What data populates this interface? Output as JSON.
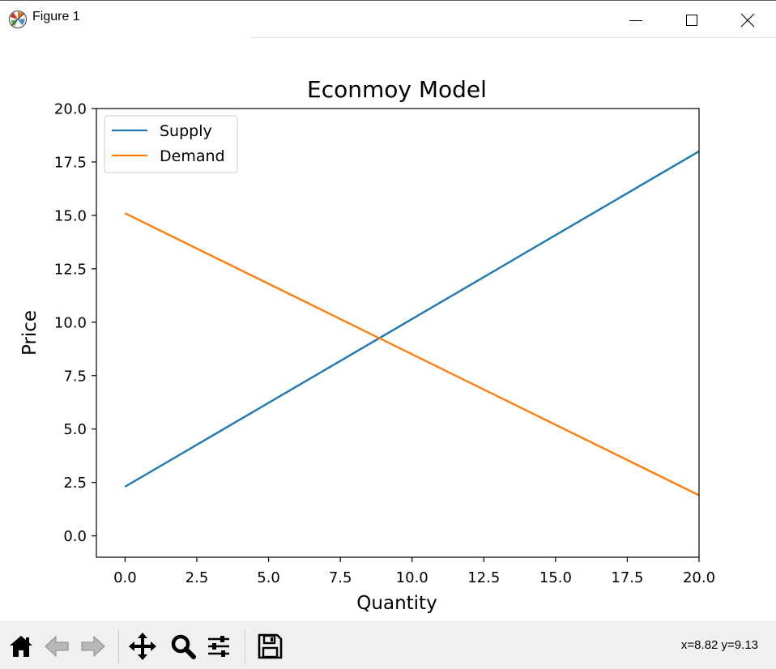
{
  "window": {
    "title": "Figure 1",
    "controls": [
      "minimize",
      "maximize",
      "close"
    ]
  },
  "colors": {
    "supply": "#1f77b4",
    "demand": "#ff7f0e",
    "toolbar_bg": "#f0f0f0"
  },
  "toolbar": {
    "buttons": [
      {
        "name": "home-icon",
        "tooltip": "Reset original view"
      },
      {
        "name": "back-arrow-icon",
        "tooltip": "Back"
      },
      {
        "name": "forward-arrow-icon",
        "tooltip": "Forward"
      },
      {
        "name": "pan-icon",
        "tooltip": "Pan"
      },
      {
        "name": "zoom-icon",
        "tooltip": "Zoom"
      },
      {
        "name": "subplots-icon",
        "tooltip": "Configure subplots"
      },
      {
        "name": "save-icon",
        "tooltip": "Save"
      }
    ],
    "coords": "x=8.82 y=9.13"
  },
  "chart_data": {
    "type": "line",
    "title": "Econmoy Model",
    "xlabel": "Quantity",
    "ylabel": "Price",
    "xlim": [
      -1,
      20
    ],
    "ylim": [
      -1,
      20
    ],
    "xticks": [
      "0.0",
      "2.5",
      "5.0",
      "7.5",
      "10.0",
      "12.5",
      "15.0",
      "17.5",
      "20.0"
    ],
    "yticks": [
      "0.0",
      "2.5",
      "5.0",
      "7.5",
      "10.0",
      "12.5",
      "15.0",
      "17.5",
      "20.0"
    ],
    "grid": false,
    "legend_position": "upper-left",
    "series": [
      {
        "name": "Supply",
        "color": "#1f77b4",
        "x": [
          0,
          20
        ],
        "y": [
          2.3,
          18.0
        ]
      },
      {
        "name": "Demand",
        "color": "#ff7f0e",
        "x": [
          0,
          20
        ],
        "y": [
          15.1,
          1.9
        ]
      }
    ]
  }
}
